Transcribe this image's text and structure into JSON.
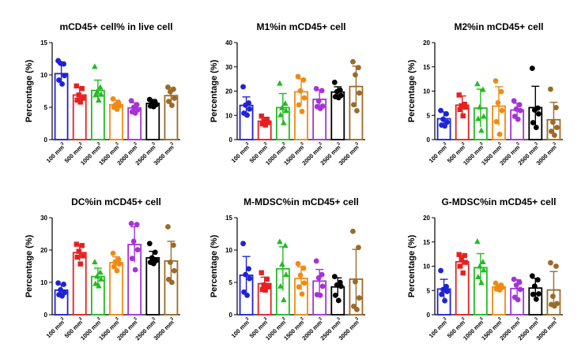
{
  "colors": [
    "#1f22d6",
    "#e62020",
    "#22bb22",
    "#f08a14",
    "#a632d8",
    "#000000",
    "#9c6a28"
  ],
  "marker_shapes": [
    "circle",
    "square",
    "triangle-up",
    "circle",
    "circle",
    "circle",
    "circle"
  ],
  "chart_data": [
    {
      "type": "bar",
      "title": "mCD45+ cell% in live cell",
      "ylabel": "Percentage (%)",
      "ylim": [
        0,
        15
      ],
      "yticks": [
        "0",
        "5",
        "10",
        "15"
      ],
      "categories": [
        "100 mm",
        "500 mm",
        "1000 mm",
        "1500 mm",
        "2000 mm",
        "2500 mm",
        "3000 mm"
      ],
      "x_unit_sup": "3",
      "series": [
        {
          "category": "100 mm",
          "mean": 10.2,
          "sd": 1.6,
          "points": [
            12.2,
            11.7,
            11.8,
            9.9,
            9.2,
            8.6
          ]
        },
        {
          "category": "500 mm",
          "mean": 6.9,
          "sd": 1.2,
          "points": [
            8.3,
            7.9,
            6.9,
            6.4,
            6.1,
            5.8
          ]
        },
        {
          "category": "1000 mm",
          "mean": 7.6,
          "sd": 1.6,
          "points": [
            11.3,
            8.1,
            7.4,
            7.0,
            6.9,
            6.1
          ]
        },
        {
          "category": "1500 mm",
          "mean": 5.4,
          "sd": 0.7,
          "points": [
            6.3,
            5.7,
            5.4,
            5.2,
            5.0,
            4.7
          ]
        },
        {
          "category": "2000 mm",
          "mean": 4.9,
          "sd": 0.8,
          "points": [
            6.0,
            5.4,
            5.0,
            4.6,
            4.3,
            4.1
          ]
        },
        {
          "category": "2500 mm",
          "mean": 5.6,
          "sd": 0.6,
          "points": [
            6.2,
            5.8,
            5.6,
            5.4,
            5.2,
            5.1
          ]
        },
        {
          "category": "3000 mm",
          "mean": 6.8,
          "sd": 1.2,
          "points": [
            8.1,
            7.8,
            7.4,
            6.4,
            5.9,
            5.3
          ]
        }
      ]
    },
    {
      "type": "bar",
      "title": "M1%in mCD45+ cell",
      "ylabel": "Percentage (%)",
      "ylim": [
        0,
        40
      ],
      "yticks": [
        "0",
        "10",
        "20",
        "30",
        "40"
      ],
      "categories": [
        "100 mm",
        "500 mm",
        "1000 mm",
        "1500 mm",
        "2000 mm",
        "2500 mm",
        "3000 mm"
      ],
      "x_unit_sup": "3",
      "series": [
        {
          "category": "100 mm",
          "mean": 14.1,
          "sd": 3.5,
          "points": [
            21.8,
            15.1,
            14.2,
            12.6,
            10.9,
            10.1
          ]
        },
        {
          "category": "500 mm",
          "mean": 7.6,
          "sd": 1.6,
          "points": [
            9.7,
            8.4,
            7.6,
            7.0,
            6.5,
            6.0
          ]
        },
        {
          "category": "1000 mm",
          "mean": 13.2,
          "sd": 5.8,
          "points": [
            23.2,
            14.9,
            13.1,
            12.0,
            10.2,
            6.9
          ]
        },
        {
          "category": "1500 mm",
          "mean": 19.7,
          "sd": 5.4,
          "points": [
            26.0,
            24.6,
            20.1,
            17.2,
            14.3,
            11.6
          ]
        },
        {
          "category": "2000 mm",
          "mean": 16.6,
          "sd": 3.8,
          "points": [
            21.0,
            20.2,
            15.9,
            13.8,
            13.6,
            12.8
          ]
        },
        {
          "category": "2500 mm",
          "mean": 19.6,
          "sd": 2.2,
          "points": [
            23.6,
            20.4,
            19.8,
            18.2,
            17.7,
            17.3
          ]
        },
        {
          "category": "3000 mm",
          "mean": 21.9,
          "sd": 8.4,
          "points": [
            32.1,
            29.7,
            26.7,
            19.2,
            14.4,
            11.9
          ]
        }
      ]
    },
    {
      "type": "bar",
      "title": "M2%in mCD45+ cell",
      "ylabel": "Percentage (%)",
      "ylim": [
        0,
        20
      ],
      "yticks": [
        "0",
        "5",
        "10",
        "15",
        "20"
      ],
      "categories": [
        "100 mm",
        "500 mm",
        "1000 mm",
        "1500 mm",
        "2000 mm",
        "2500 mm",
        "3000 mm"
      ],
      "x_unit_sup": "3",
      "series": [
        {
          "category": "100 mm",
          "mean": 4.3,
          "sd": 1.4,
          "points": [
            6.0,
            5.3,
            4.2,
            3.6,
            3.0,
            2.8
          ]
        },
        {
          "category": "500 mm",
          "mean": 7.1,
          "sd": 1.9,
          "points": [
            9.2,
            7.3,
            7.0,
            6.7,
            6.2,
            4.9
          ]
        },
        {
          "category": "1000 mm",
          "mean": 6.5,
          "sd": 3.9,
          "points": [
            11.5,
            10.3,
            6.7,
            4.8,
            4.3,
            1.9
          ]
        },
        {
          "category": "1500 mm",
          "mean": 6.9,
          "sd": 4.0,
          "points": [
            12.1,
            9.9,
            7.6,
            6.0,
            3.7,
            1.1
          ]
        },
        {
          "category": "2000 mm",
          "mean": 6.1,
          "sd": 1.4,
          "points": [
            8.0,
            7.2,
            6.3,
            6.0,
            4.8,
            4.2
          ]
        },
        {
          "category": "2500 mm",
          "mean": 6.6,
          "sd": 4.4,
          "points": [
            14.7,
            6.5,
            6.1,
            5.3,
            3.5,
            2.5
          ]
        },
        {
          "category": "3000 mm",
          "mean": 4.1,
          "sd": 3.6,
          "points": [
            10.4,
            6.6,
            3.6,
            2.5,
            1.7,
            0.9
          ]
        }
      ]
    },
    {
      "type": "bar",
      "title": "DC%in mCD45+ cell",
      "ylabel": "Percentage (%)",
      "ylim": [
        0,
        30
      ],
      "yticks": [
        "0",
        "10",
        "20",
        "30"
      ],
      "categories": [
        "100 mm",
        "500 mm",
        "1000 mm",
        "1500 mm",
        "2000 mm",
        "2500 mm",
        "3000 mm"
      ],
      "x_unit_sup": "3",
      "series": [
        {
          "category": "100 mm",
          "mean": 7.6,
          "sd": 1.8,
          "points": [
            9.8,
            9.4,
            7.7,
            6.8,
            6.2,
            5.8
          ]
        },
        {
          "category": "500 mm",
          "mean": 19.2,
          "sd": 2.5,
          "points": [
            21.8,
            21.4,
            19.6,
            18.2,
            17.8,
            15.7
          ]
        },
        {
          "category": "1000 mm",
          "mean": 11.8,
          "sd": 2.6,
          "points": [
            16.3,
            13.1,
            11.9,
            11.0,
            9.6,
            8.9
          ]
        },
        {
          "category": "1500 mm",
          "mean": 16.1,
          "sd": 1.8,
          "points": [
            19.0,
            17.0,
            16.4,
            15.7,
            14.9,
            13.6
          ]
        },
        {
          "category": "2000 mm",
          "mean": 21.7,
          "sd": 5.5,
          "points": [
            28.2,
            27.9,
            22.7,
            20.1,
            17.4,
            13.9
          ]
        },
        {
          "category": "2500 mm",
          "mean": 17.6,
          "sd": 2.0,
          "points": [
            22.0,
            19.3,
            17.6,
            16.7,
            16.2,
            15.8
          ]
        },
        {
          "category": "3000 mm",
          "mean": 16.6,
          "sd": 6.1,
          "points": [
            27.2,
            21.5,
            16.2,
            13.6,
            10.9,
            10.0
          ]
        }
      ]
    },
    {
      "type": "bar",
      "title": "M-MDSC%in mCD45+ cell",
      "ylabel": "Percentage (%)",
      "ylim": [
        0,
        15
      ],
      "yticks": [
        "0",
        "5",
        "10",
        "15"
      ],
      "categories": [
        "100 mm",
        "500 mm",
        "1000 mm",
        "1500 mm",
        "2000 mm",
        "2500 mm",
        "3000 mm"
      ],
      "x_unit_sup": "3",
      "series": [
        {
          "category": "100 mm",
          "mean": 6.1,
          "sd": 2.9,
          "points": [
            11.0,
            7.1,
            6.2,
            5.6,
            3.5,
            3.0
          ]
        },
        {
          "category": "500 mm",
          "mean": 4.8,
          "sd": 1.0,
          "points": [
            6.5,
            5.5,
            4.6,
            4.3,
            3.9,
            3.8
          ]
        },
        {
          "category": "1000 mm",
          "mean": 7.1,
          "sd": 3.4,
          "points": [
            11.3,
            10.7,
            7.8,
            6.2,
            4.4,
            2.3
          ]
        },
        {
          "category": "1500 mm",
          "mean": 5.6,
          "sd": 1.8,
          "points": [
            7.9,
            7.2,
            6.1,
            4.9,
            4.3,
            3.2
          ]
        },
        {
          "category": "2000 mm",
          "mean": 5.2,
          "sd": 1.8,
          "points": [
            8.3,
            6.2,
            5.7,
            4.4,
            3.1,
            3.0
          ]
        },
        {
          "category": "2500 mm",
          "mean": 4.3,
          "sd": 1.4,
          "points": [
            5.9,
            5.0,
            4.6,
            4.4,
            3.0,
            2.2
          ]
        },
        {
          "category": "3000 mm",
          "mean": 5.5,
          "sd": 4.6,
          "points": [
            12.9,
            10.4,
            5.1,
            2.6,
            1.3,
            0.8
          ]
        }
      ]
    },
    {
      "type": "bar",
      "title": "G-MDSC%in mCD45+ cell",
      "ylabel": "Percentage (%)",
      "ylim": [
        0,
        20
      ],
      "yticks": [
        "0",
        "5",
        "10",
        "15",
        "20"
      ],
      "categories": [
        "100 mm",
        "500 mm",
        "1000 mm",
        "1500 mm",
        "2000 mm",
        "2500 mm",
        "3000 mm"
      ],
      "x_unit_sup": "3",
      "series": [
        {
          "category": "100 mm",
          "mean": 5.3,
          "sd": 2.0,
          "points": [
            9.1,
            5.8,
            5.2,
            4.8,
            4.2,
            2.9
          ]
        },
        {
          "category": "500 mm",
          "mean": 10.9,
          "sd": 1.3,
          "points": [
            12.4,
            12.2,
            11.4,
            10.8,
            10.0,
            8.6
          ]
        },
        {
          "category": "1000 mm",
          "mean": 9.7,
          "sd": 2.9,
          "points": [
            15.1,
            10.9,
            10.0,
            9.2,
            7.8,
            6.6
          ]
        },
        {
          "category": "1500 mm",
          "mean": 5.7,
          "sd": 0.6,
          "points": [
            6.5,
            6.1,
            5.8,
            5.6,
            5.3,
            5.1
          ]
        },
        {
          "category": "2000 mm",
          "mean": 5.4,
          "sd": 1.8,
          "points": [
            7.3,
            6.7,
            6.1,
            5.2,
            3.6,
            3.1
          ]
        },
        {
          "category": "2500 mm",
          "mean": 5.5,
          "sd": 2.0,
          "points": [
            8.0,
            7.2,
            5.9,
            4.3,
            4.2,
            3.2
          ]
        },
        {
          "category": "3000 mm",
          "mean": 5.1,
          "sd": 3.8,
          "points": [
            10.7,
            10.0,
            3.8,
            2.3,
            2.1,
            1.8
          ]
        }
      ]
    }
  ]
}
